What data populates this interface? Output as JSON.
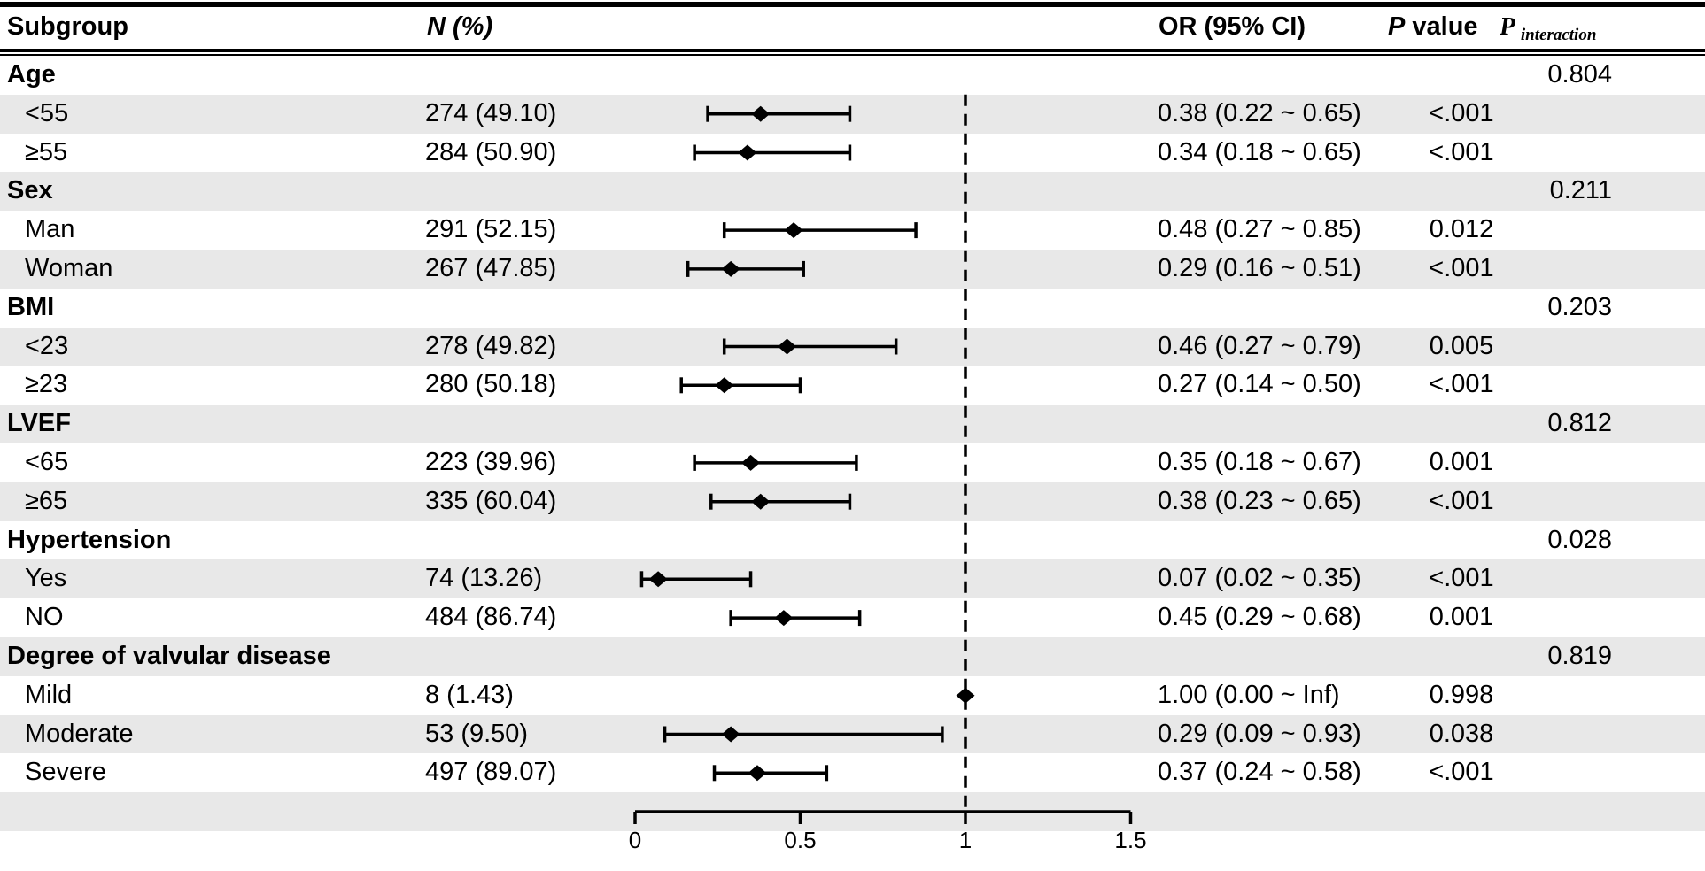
{
  "header": {
    "subgroup": "Subgroup",
    "n_pct": "N (%)",
    "or_ci": "OR (95% CI)",
    "p_value": {
      "p": "P",
      "rest": " value"
    },
    "p_interaction": {
      "p": "P",
      "sub": "interaction"
    }
  },
  "colors": {
    "ink": "#000000",
    "row_shade": "#e8e8e8",
    "background": "#ffffff"
  },
  "rows": [
    {
      "type": "group",
      "label": "Age",
      "p_interaction": "0.804"
    },
    {
      "type": "item",
      "label": "<55",
      "n_pct": "274 (49.10)",
      "or_ci": "0.38 (0.22 ~ 0.65)",
      "p_value": "<.001"
    },
    {
      "type": "item",
      "label": "≥55",
      "n_pct": "284 (50.90)",
      "or_ci": "0.34 (0.18 ~ 0.65)",
      "p_value": "<.001"
    },
    {
      "type": "group",
      "label": "Sex",
      "p_interaction": "0.211"
    },
    {
      "type": "item",
      "label": "Man",
      "n_pct": "291 (52.15)",
      "or_ci": "0.48 (0.27 ~ 0.85)",
      "p_value": "0.012"
    },
    {
      "type": "item",
      "label": "Woman",
      "n_pct": "267 (47.85)",
      "or_ci": "0.29 (0.16 ~ 0.51)",
      "p_value": "<.001"
    },
    {
      "type": "group",
      "label": "BMI",
      "p_interaction": "0.203"
    },
    {
      "type": "item",
      "label": "<23",
      "n_pct": "278 (49.82)",
      "or_ci": "0.46 (0.27 ~ 0.79)",
      "p_value": "0.005"
    },
    {
      "type": "item",
      "label": "≥23",
      "n_pct": "280 (50.18)",
      "or_ci": "0.27 (0.14 ~ 0.50)",
      "p_value": "<.001"
    },
    {
      "type": "group",
      "label": "LVEF",
      "p_interaction": "0.812"
    },
    {
      "type": "item",
      "label": "<65",
      "n_pct": "223 (39.96)",
      "or_ci": "0.35 (0.18 ~ 0.67)",
      "p_value": "0.001"
    },
    {
      "type": "item",
      "label": "≥65",
      "n_pct": "335 (60.04)",
      "or_ci": "0.38 (0.23 ~ 0.65)",
      "p_value": "<.001"
    },
    {
      "type": "group",
      "label": "Hypertension",
      "p_interaction": "0.028"
    },
    {
      "type": "item",
      "label": "Yes",
      "n_pct": "74 (13.26)",
      "or_ci": "0.07 (0.02 ~ 0.35)",
      "p_value": "<.001"
    },
    {
      "type": "item",
      "label": "NO",
      "n_pct": "484 (86.74)",
      "or_ci": "0.45 (0.29 ~ 0.68)",
      "p_value": "0.001"
    },
    {
      "type": "group",
      "label": "Degree of valvular disease",
      "p_interaction": "0.819"
    },
    {
      "type": "item",
      "label": "Mild",
      "n_pct": "8 (1.43)",
      "or_ci": "1.00 (0.00 ~ Inf)",
      "p_value": "0.998"
    },
    {
      "type": "item",
      "label": "Moderate",
      "n_pct": "53 (9.50)",
      "or_ci": "0.29 (0.09 ~ 0.93)",
      "p_value": "0.038"
    },
    {
      "type": "item",
      "label": "Severe",
      "n_pct": "497 (89.07)",
      "or_ci": "0.37 (0.24 ~ 0.58)",
      "p_value": "<.001"
    },
    {
      "type": "spacer"
    }
  ],
  "chart_data": {
    "type": "scatter",
    "variant": "forest-plot",
    "title": "",
    "xlabel": "",
    "ylabel": "",
    "xlim": [
      0,
      1.5
    ],
    "x_ticks": [
      0,
      0.5,
      1,
      1.5
    ],
    "x_tick_labels": [
      "0",
      "0.5",
      "1",
      "1.5"
    ],
    "reference_line_x": 1,
    "grid": false,
    "legend": "none",
    "points": [
      {
        "label": "<55",
        "or": 0.38,
        "lo": 0.22,
        "hi": 0.65,
        "draw_ci": true
      },
      {
        "label": "≥55",
        "or": 0.34,
        "lo": 0.18,
        "hi": 0.65,
        "draw_ci": true
      },
      {
        "label": "Man",
        "or": 0.48,
        "lo": 0.27,
        "hi": 0.85,
        "draw_ci": true
      },
      {
        "label": "Woman",
        "or": 0.29,
        "lo": 0.16,
        "hi": 0.51,
        "draw_ci": true
      },
      {
        "label": "<23",
        "or": 0.46,
        "lo": 0.27,
        "hi": 0.79,
        "draw_ci": true
      },
      {
        "label": "≥23",
        "or": 0.27,
        "lo": 0.14,
        "hi": 0.5,
        "draw_ci": true
      },
      {
        "label": "<65",
        "or": 0.35,
        "lo": 0.18,
        "hi": 0.67,
        "draw_ci": true
      },
      {
        "label": "≥65",
        "or": 0.38,
        "lo": 0.23,
        "hi": 0.65,
        "draw_ci": true
      },
      {
        "label": "Yes",
        "or": 0.07,
        "lo": 0.02,
        "hi": 0.35,
        "draw_ci": true
      },
      {
        "label": "NO",
        "or": 0.45,
        "lo": 0.29,
        "hi": 0.68,
        "draw_ci": true
      },
      {
        "label": "Mild",
        "or": 1.0,
        "lo": 0.0,
        "hi": null,
        "draw_ci": false
      },
      {
        "label": "Moderate",
        "or": 0.29,
        "lo": 0.09,
        "hi": 0.93,
        "draw_ci": true
      },
      {
        "label": "Severe",
        "or": 0.37,
        "lo": 0.24,
        "hi": 0.58,
        "draw_ci": true
      }
    ]
  }
}
